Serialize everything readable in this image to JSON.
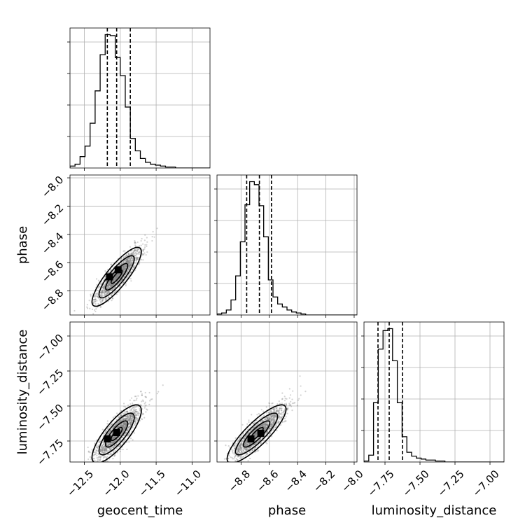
{
  "chart_data": {
    "type": "corner",
    "parameters": [
      "geocent_time",
      "phase",
      "luminosity_distance"
    ],
    "axis_labels": {
      "geocent_time": "geocent_time",
      "phase": "phase",
      "luminosity_distance": "luminosity_distance"
    },
    "ranges": {
      "geocent_time": [
        -12.7,
        -10.75
      ],
      "phase": [
        -8.97,
        -7.98
      ],
      "luminosity_distance": [
        -7.9,
        -6.9
      ]
    },
    "ticks": {
      "geocent_time": [
        -12.5,
        -12.0,
        -11.5,
        -11.0
      ],
      "phase": [
        -8.8,
        -8.6,
        -8.4,
        -8.2,
        -8.0
      ],
      "luminosity_distance": [
        -7.75,
        -7.5,
        -7.25,
        -7.0
      ]
    },
    "tick_labels": {
      "geocent_time": [
        "−12.5",
        "−12.0",
        "−11.5",
        "−11.0"
      ],
      "phase": [
        "−8.8",
        "−8.6",
        "−8.4",
        "−8.2",
        "−8.0"
      ],
      "luminosity_distance": [
        "−7.75",
        "−7.50",
        "−7.25",
        "−7.00"
      ]
    },
    "quantiles": {
      "geocent_time": [
        -12.18,
        -12.05,
        -11.86
      ],
      "phase": [
        -8.76,
        -8.67,
        -8.585
      ],
      "luminosity_distance": [
        -7.8,
        -7.72,
        -7.625
      ]
    },
    "histograms": {
      "geocent_time": {
        "edges": [
          -12.7,
          -12.63,
          -12.56,
          -12.49,
          -12.42,
          -12.35,
          -12.28,
          -12.21,
          -12.14,
          -12.07,
          -12.0,
          -11.93,
          -11.86,
          -11.79,
          -11.72,
          -11.65,
          -11.58,
          -11.51,
          -11.44,
          -11.37,
          -11.3,
          -11.23,
          -11.16,
          -11.09,
          -11.02,
          -10.95,
          -10.88,
          -10.81,
          -10.75
        ],
        "counts": [
          2,
          4,
          12,
          23,
          47,
          81,
          119,
          140,
          139,
          116,
          97,
          64,
          31,
          18,
          10,
          6,
          4,
          3,
          2,
          1,
          1,
          0,
          0,
          0,
          0,
          0,
          0,
          0
        ]
      },
      "phase": {
        "edges": [
          -8.97,
          -8.937,
          -8.904,
          -8.871,
          -8.838,
          -8.805,
          -8.772,
          -8.739,
          -8.706,
          -8.673,
          -8.64,
          -8.607,
          -8.574,
          -8.541,
          -8.508,
          -8.475,
          -8.442,
          -8.409,
          -8.376,
          -8.343,
          -8.31,
          -8.277,
          -8.244,
          -8.211,
          -8.178,
          -8.145,
          -8.112,
          -8.079,
          -8.046,
          -8.013,
          -7.98
        ],
        "counts": [
          1,
          2,
          5,
          15,
          39,
          73,
          110,
          133,
          130,
          109,
          78,
          35,
          18,
          11,
          8,
          5,
          3,
          2,
          1,
          0,
          0,
          0,
          0,
          0,
          0,
          0,
          0,
          0,
          0,
          0
        ]
      },
      "luminosity_distance": {
        "edges": [
          -7.9,
          -7.866,
          -7.832,
          -7.798,
          -7.764,
          -7.73,
          -7.696,
          -7.662,
          -7.628,
          -7.594,
          -7.56,
          -7.526,
          -7.492,
          -7.458,
          -7.424,
          -7.39,
          -7.356,
          -7.322,
          -7.288,
          -7.254,
          -7.22,
          -7.186,
          -7.152,
          -7.118,
          -7.084,
          -7.05,
          -7.016,
          -6.982,
          -6.948,
          -6.9
        ],
        "counts": [
          1,
          7,
          61,
          116,
          135,
          137,
          104,
          61,
          26,
          10,
          6,
          4,
          3,
          2,
          2,
          1,
          1,
          0,
          0,
          0,
          0,
          0,
          0,
          0,
          0,
          0,
          0,
          0,
          0
        ]
      }
    },
    "scatter": [
      {
        "x": "geocent_time",
        "y": "phase",
        "mean": [
          -12.05,
          -8.7
        ],
        "sd": [
          0.14,
          0.085
        ],
        "rho": 0.85,
        "peaks": [
          [
            -12.15,
            -8.7
          ],
          [
            -12.03,
            -8.65
          ]
        ]
      },
      {
        "x": "geocent_time",
        "y": "luminosity_distance",
        "mean": [
          -12.05,
          -7.7
        ],
        "sd": [
          0.14,
          0.085
        ],
        "rho": 0.8,
        "peaks": [
          [
            -12.18,
            -7.735
          ],
          [
            -12.05,
            -7.69
          ]
        ]
      },
      {
        "x": "phase",
        "y": "luminosity_distance",
        "mean": [
          -8.69,
          -7.7
        ],
        "sd": [
          0.085,
          0.085
        ],
        "rho": 0.85,
        "peaks": [
          [
            -8.73,
            -7.735
          ],
          [
            -8.66,
            -7.695
          ]
        ]
      }
    ],
    "grid": true,
    "colors": {
      "line": "#000000",
      "points": "#808080",
      "grid": "#b0b0b0"
    }
  }
}
